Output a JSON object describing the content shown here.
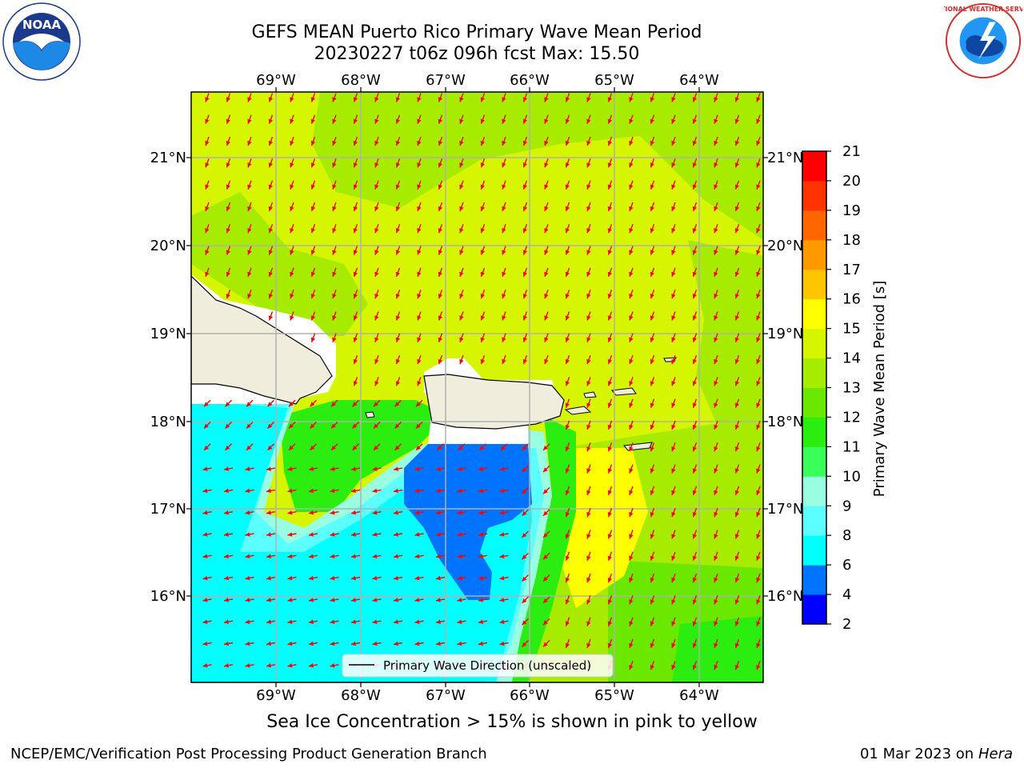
{
  "title_line1": "GEFS MEAN Puerto Rico Primary Wave Mean Period",
  "title_line2": "20230227 t06z 096h fcst   Max: 15.50",
  "lon_labels": [
    "69°W",
    "68°W",
    "67°W",
    "66°W",
    "65°W",
    "64°W"
  ],
  "lat_labels": [
    "21°N",
    "20°N",
    "19°N",
    "18°N",
    "17°N",
    "16°N"
  ],
  "colorbar": {
    "label": "Primary Wave Mean Period [s]",
    "ticks": [
      "2",
      "4",
      "6",
      "8",
      "9",
      "10",
      "11",
      "12",
      "13",
      "14",
      "15",
      "16",
      "17",
      "18",
      "19",
      "20",
      "21"
    ],
    "colors": [
      "#0000ff",
      "#0073ff",
      "#00ffff",
      "#5cffff",
      "#99ffe0",
      "#3aff5a",
      "#2bee10",
      "#6ae800",
      "#a7ec00",
      "#d6f500",
      "#ffff00",
      "#ffc600",
      "#ff9900",
      "#ff6600",
      "#ff3300",
      "#ff0000"
    ]
  },
  "legend": {
    "label": "Primary Wave Direction (unscaled)"
  },
  "subcaption": "Sea Ice Concentration > 15% is shown in pink to yellow",
  "credit_left": "NCEP/EMC/Verification Post Processing Product Generation Branch",
  "credit_date": "01 Mar 2023 on",
  "credit_system": "Hera",
  "logos": {
    "noaa_text": "NOAA",
    "nws_text": "NATIONAL WEATHER SERVICE"
  },
  "colors": {
    "arrow": "#ff0000",
    "land": "#f0eddc",
    "grid": "#b0b0b0"
  }
}
